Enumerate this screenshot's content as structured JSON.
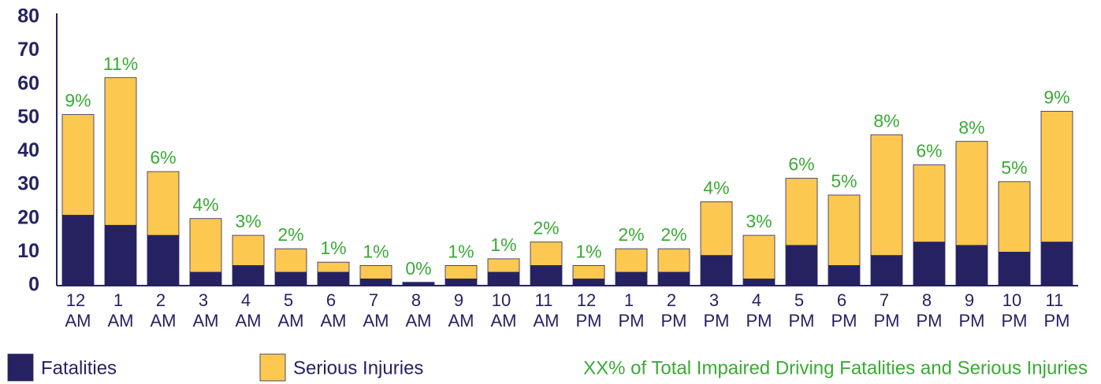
{
  "chart_data": {
    "type": "stacked_bar",
    "categories": [
      "12 AM",
      "1 AM",
      "2 AM",
      "3 AM",
      "4 AM",
      "5 AM",
      "6 AM",
      "7 AM",
      "8 AM",
      "9 AM",
      "10 AM",
      "11 AM",
      "12 PM",
      "1 PM",
      "2 PM",
      "3 PM",
      "4 PM",
      "5 PM",
      "6 PM",
      "7 PM",
      "8 PM",
      "9 PM",
      "10 PM",
      "11 PM"
    ],
    "series": [
      {
        "name": "Fatalities",
        "color": "#262262",
        "values": [
          21,
          18,
          15,
          4,
          6,
          4,
          4,
          2,
          1,
          2,
          4,
          6,
          2,
          4,
          4,
          9,
          2,
          12,
          6,
          9,
          13,
          12,
          10,
          13
        ]
      },
      {
        "name": "Serious Injuries",
        "color": "#fdc84f",
        "values": [
          30,
          44,
          19,
          16,
          9,
          7,
          3,
          4,
          0,
          4,
          4,
          7,
          4,
          7,
          7,
          16,
          13,
          20,
          21,
          36,
          23,
          31,
          21,
          39
        ]
      }
    ],
    "annotations": [
      "9%",
      "11%",
      "6%",
      "4%",
      "3%",
      "2%",
      "1%",
      "1%",
      "0%",
      "1%",
      "1%",
      "2%",
      "1%",
      "2%",
      "2%",
      "4%",
      "3%",
      "6%",
      "5%",
      "8%",
      "6%",
      "8%",
      "5%",
      "9%"
    ],
    "note": "XX% of Total Impaired Driving Fatalities and Serious Injuries",
    "ylim": [
      0,
      80
    ],
    "yticks": [
      0,
      10,
      20,
      30,
      40,
      50,
      60,
      70,
      80
    ],
    "grid": false
  }
}
